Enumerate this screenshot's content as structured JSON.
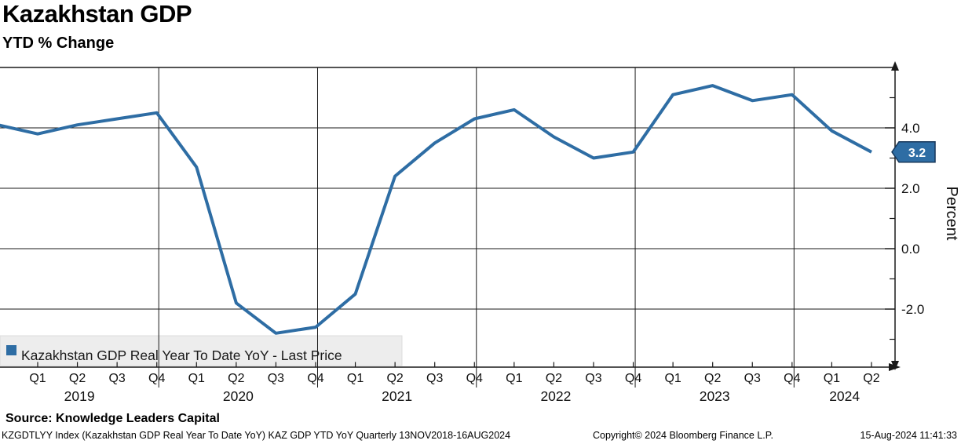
{
  "header": {
    "title": "Kazakhstan GDP",
    "subtitle": "YTD % Change"
  },
  "legend": {
    "label": "Kazakhstan GDP Real Year To Date YoY - Last Price",
    "marker_color": "#2e6da4"
  },
  "source_line": "Source: Knowledge Leaders Capital",
  "footer": {
    "left": "KZGDTLYY Index (Kazakhstan GDP Real Year To Date YoY) KAZ GDP YTD YoY  Quarterly 13NOV2018-16AUG2024",
    "center": "Copyright© 2024 Bloomberg Finance L.P.",
    "right": "15-Aug-2024 11:41:33"
  },
  "chart_data": {
    "type": "line",
    "title": "Kazakhstan GDP",
    "subtitle": "YTD % Change",
    "xlabel": "",
    "ylabel": "Percent",
    "grid": true,
    "legend_position": "bottom-left",
    "line_color": "#2e6da4",
    "grid_color": "#1a1a1a",
    "x": [
      "Q4 2018",
      "Q1 2019",
      "Q2 2019",
      "Q3 2019",
      "Q4 2019",
      "Q1 2020",
      "Q2 2020",
      "Q3 2020",
      "Q4 2020",
      "Q1 2021",
      "Q2 2021",
      "Q3 2021",
      "Q4 2021",
      "Q1 2022",
      "Q2 2022",
      "Q3 2022",
      "Q4 2022",
      "Q1 2023",
      "Q2 2023",
      "Q3 2023",
      "Q4 2023",
      "Q1 2024",
      "Q2 2024"
    ],
    "series": [
      {
        "name": "Kazakhstan GDP Real Year To Date YoY - Last Price",
        "values": [
          4.1,
          3.8,
          4.1,
          4.3,
          4.5,
          2.7,
          -1.8,
          -2.8,
          -2.6,
          -1.5,
          2.4,
          3.5,
          4.3,
          4.6,
          3.7,
          3.0,
          3.2,
          5.1,
          5.4,
          4.9,
          5.1,
          3.9,
          3.2
        ]
      }
    ],
    "last_price": {
      "value": "3.2",
      "bg": "#2e6da4",
      "border": "#16375a",
      "text_color": "#ffffff"
    },
    "y_axis": {
      "label": "Percent",
      "major_ticks": [
        4.0,
        2.0,
        0.0,
        -2.0
      ],
      "major_tick_labels": [
        "4.0",
        "2.0",
        "0.0",
        "-2.0"
      ],
      "minor_ticks": [
        5.0,
        3.0,
        1.0,
        -1.0,
        -3.0
      ],
      "range": [
        -3.9,
        6.0
      ]
    },
    "x_axis": {
      "years": [
        {
          "label": "2019",
          "quarters": [
            "Q1",
            "Q2",
            "Q3",
            "Q4"
          ]
        },
        {
          "label": "2020",
          "quarters": [
            "Q1",
            "Q2",
            "Q3",
            "Q4"
          ]
        },
        {
          "label": "2021",
          "quarters": [
            "Q1",
            "Q2",
            "Q3",
            "Q4"
          ]
        },
        {
          "label": "2022",
          "quarters": [
            "Q1",
            "Q2",
            "Q3",
            "Q4"
          ]
        },
        {
          "label": "2023",
          "quarters": [
            "Q1",
            "Q2",
            "Q3",
            "Q4"
          ]
        },
        {
          "label": "2024",
          "quarters": [
            "Q1",
            "Q2"
          ]
        }
      ],
      "range_note": "13NOV2018-16AUG2024"
    }
  }
}
